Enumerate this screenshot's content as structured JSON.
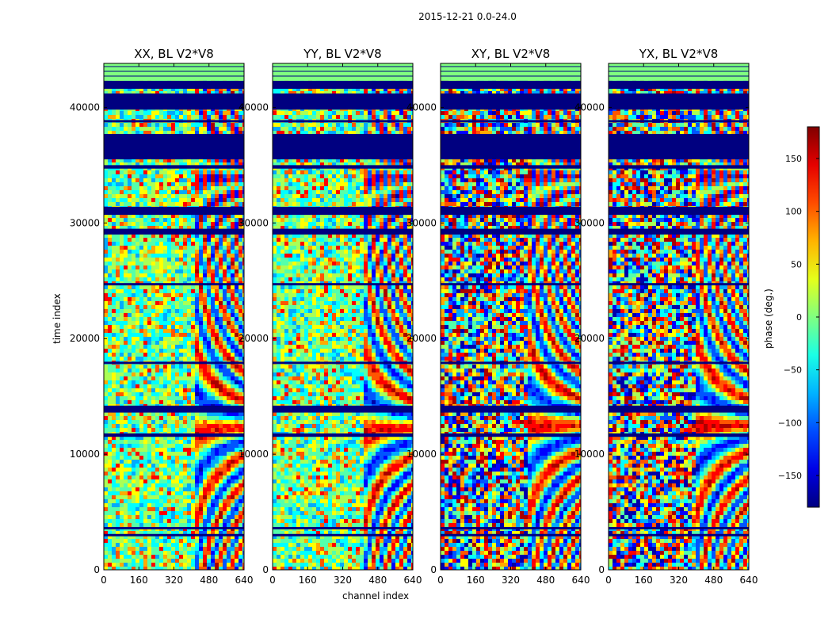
{
  "chart_data": {
    "type": "heatmap",
    "suptitle": "2015-12-21 0.0-24.0",
    "xlabel": "channel index",
    "ylabel": "time index",
    "xlim": [
      0,
      640
    ],
    "ylim": [
      0,
      43800
    ],
    "xticks": [
      0,
      160,
      320,
      480,
      640
    ],
    "yticks": [
      0,
      10000,
      20000,
      30000,
      40000
    ],
    "colorbar": {
      "label": "phase (deg.)",
      "range": [
        -180,
        180
      ],
      "ticks": [
        -150,
        -100,
        -50,
        0,
        50,
        100,
        150
      ],
      "colormap": "jet"
    },
    "panels": [
      {
        "title": "XX, BL V2*V8"
      },
      {
        "title": "YY, BL V2*V8"
      },
      {
        "title": "XY, BL V2*V8"
      },
      {
        "title": "YX, BL V2*V8"
      }
    ],
    "flagged_time_ranges": [
      [
        2900,
        3100
      ],
      [
        3500,
        3700
      ],
      [
        11500,
        11800
      ],
      [
        13600,
        14200
      ],
      [
        17800,
        18000
      ],
      [
        24600,
        24800
      ],
      [
        29000,
        29500
      ],
      [
        30700,
        31400
      ],
      [
        34700,
        35000
      ],
      [
        35500,
        37700
      ],
      [
        38700,
        38900
      ],
      [
        39800,
        41200
      ],
      [
        41600,
        42300
      ]
    ],
    "empty_time_ranges": [
      [
        42300,
        43800
      ]
    ],
    "signal_channels_start": [
      400,
      400,
      380,
      380
    ]
  }
}
